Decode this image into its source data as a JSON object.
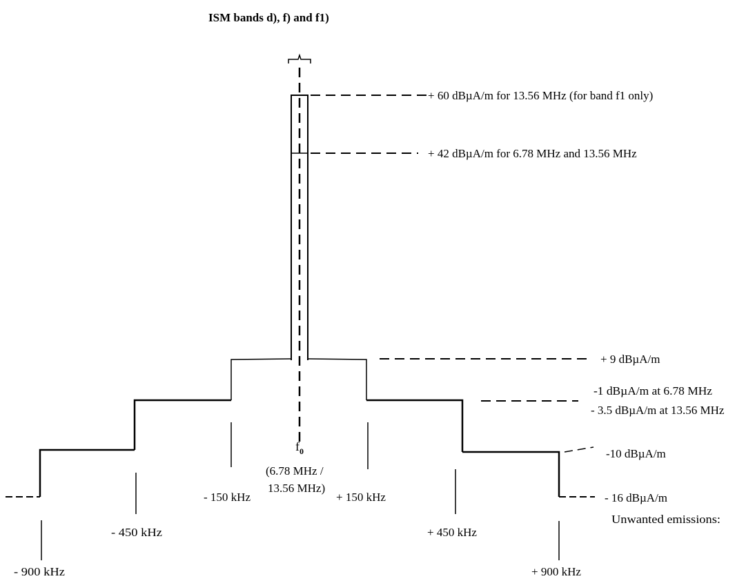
{
  "title": "ISM bands d), f) and f1)",
  "annotations": {
    "a60": "+ 60 dBµA/m for 13.56 MHz (for band f1 only)",
    "a42": "+ 42 dBµA/m for 6.78 MHz and 13.56 MHz",
    "a9": "+ 9 dBµA/m",
    "a1": "-1 dBµA/m at 6.78 MHz",
    "a35": "- 3.5 dBµA/m at 13.56 MHz",
    "a10": "-10 dBµA/m",
    "a16": "- 16 dBµA/m",
    "unwanted": "Unwanted emissions:"
  },
  "center": {
    "symbol": "f",
    "subscript": "0",
    "line1": "(6.78 MHz /",
    "line2": "13.56 MHz)"
  },
  "ticks": {
    "m150": "- 150 kHz",
    "p150": "+ 150 kHz",
    "m450": "- 450 kHz",
    "p450": "+ 450 kHz",
    "m900": "- 900 kHz",
    "p900": "+ 900 kHz"
  },
  "colors": {
    "line": "#000000",
    "background": "#ffffff"
  }
}
